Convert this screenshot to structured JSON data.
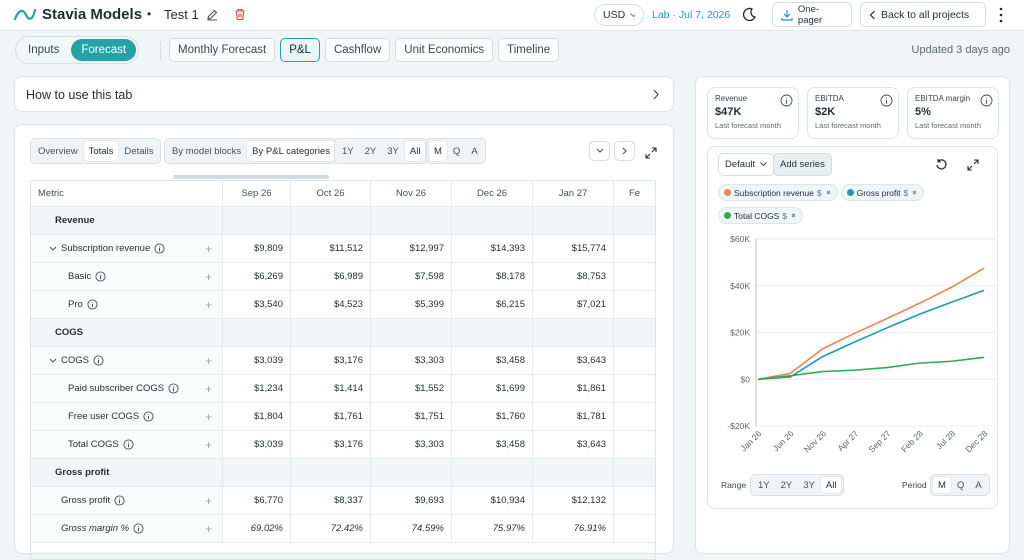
{
  "header": {
    "brand": "Stavia Models",
    "separator": "•",
    "project": "Test 1",
    "currency": "USD",
    "lab": "Lab · Jul 7, 2026",
    "one_pager": "One-pager",
    "back": "Back to all projects"
  },
  "nav": {
    "modes": [
      "Inputs",
      "Forecast"
    ],
    "active_mode": 1,
    "tabs": [
      "Monthly Forecast",
      "P&L",
      "Cashflow",
      "Unit Economics",
      "Timeline"
    ],
    "active_tab": 1,
    "updated": "Updated 3 days ago"
  },
  "help": "How to use this tab",
  "table_controls": {
    "views": [
      "Overview",
      "Totals",
      "Details"
    ],
    "active_view": 1,
    "groupings": [
      "By model blocks",
      "By P&L categories"
    ],
    "active_grouping": 1,
    "ranges": [
      "1Y",
      "2Y",
      "3Y",
      "All"
    ],
    "active_range": 3,
    "periods": [
      "M",
      "Q",
      "A"
    ],
    "active_period": 0
  },
  "table": {
    "columns": [
      "Metric",
      "Sep 26",
      "Oct 26",
      "Nov 26",
      "Dec 26",
      "Jan 27",
      "Fe"
    ],
    "sections": [
      {
        "title": "Revenue",
        "rows": [
          {
            "label": "Subscription revenue",
            "values": [
              "$9,809",
              "$11,512",
              "$12,997",
              "$14,393",
              "$15,774"
            ],
            "children": [
              {
                "label": "Basic",
                "values": [
                  "$6,269",
                  "$6,989",
                  "$7,598",
                  "$8,178",
                  "$8,753"
                ]
              },
              {
                "label": "Pro",
                "values": [
                  "$3,540",
                  "$4,523",
                  "$5,399",
                  "$6,215",
                  "$7,021"
                ]
              }
            ]
          }
        ]
      },
      {
        "title": "COGS",
        "rows": [
          {
            "label": "COGS",
            "values": [
              "$3,039",
              "$3,176",
              "$3,303",
              "$3,458",
              "$3,643"
            ],
            "children": [
              {
                "label": "Paid subscriber COGS",
                "values": [
                  "$1,234",
                  "$1,414",
                  "$1,552",
                  "$1,699",
                  "$1,861"
                ]
              },
              {
                "label": "Free user COGS",
                "values": [
                  "$1,804",
                  "$1,761",
                  "$1,751",
                  "$1,760",
                  "$1,781"
                ]
              },
              {
                "label": "Total COGS",
                "values": [
                  "$3,039",
                  "$3,176",
                  "$3,303",
                  "$3,458",
                  "$3,643"
                ]
              }
            ]
          }
        ]
      },
      {
        "title": "Gross profit",
        "rows": [
          {
            "label": "Gross profit",
            "values": [
              "$6,770",
              "$8,337",
              "$9,693",
              "$10,934",
              "$12,132"
            ]
          },
          {
            "label": "Gross margin %",
            "values": [
              "69.02%",
              "72.42%",
              "74.59%",
              "75.97%",
              "76.91%"
            ],
            "italic": true
          }
        ]
      }
    ]
  },
  "kpis": [
    {
      "label": "Revenue",
      "value": "$47K",
      "note": "Last forecast month"
    },
    {
      "label": "EBITDA",
      "value": "$2K",
      "note": "Last forecast month"
    },
    {
      "label": "EBITDA margin",
      "value": "5%",
      "note": "Last forecast month"
    }
  ],
  "chart_panel": {
    "preset": "Default",
    "add": "Add series",
    "series_unit": "$",
    "range_label": "Range",
    "ranges": [
      "1Y",
      "2Y",
      "3Y",
      "All"
    ],
    "active_range": 3,
    "period_label": "Period",
    "periods": [
      "M",
      "Q",
      "A"
    ],
    "active_period": 0
  },
  "chart_data": {
    "type": "line",
    "categories": [
      "Jan 26",
      "Jun 26",
      "Nov 26",
      "Apr 27",
      "Sep 27",
      "Feb 28",
      "Jul 28",
      "Dec 28"
    ],
    "series": [
      {
        "name": "Subscription revenue",
        "color": "#f08451",
        "values": [
          0,
          2500,
          12997,
          19700,
          26000,
          32500,
          39400,
          47500
        ]
      },
      {
        "name": "Gross profit",
        "color": "#1b9bb2",
        "values": [
          0,
          1000,
          9693,
          16000,
          22000,
          27800,
          33000,
          38000
        ]
      },
      {
        "name": "Total COGS",
        "color": "#2ea955",
        "values": [
          0,
          1500,
          3303,
          3900,
          5000,
          6900,
          7700,
          9400
        ]
      }
    ],
    "ylim": [
      -20000,
      60000
    ],
    "yticks": [
      {
        "value": -20000,
        "label": "-$20K"
      },
      {
        "value": 0,
        "label": "$0"
      },
      {
        "value": 20000,
        "label": "$20K"
      },
      {
        "value": 40000,
        "label": "$40K"
      },
      {
        "value": 60000,
        "label": "$60K"
      }
    ],
    "grid": true
  }
}
